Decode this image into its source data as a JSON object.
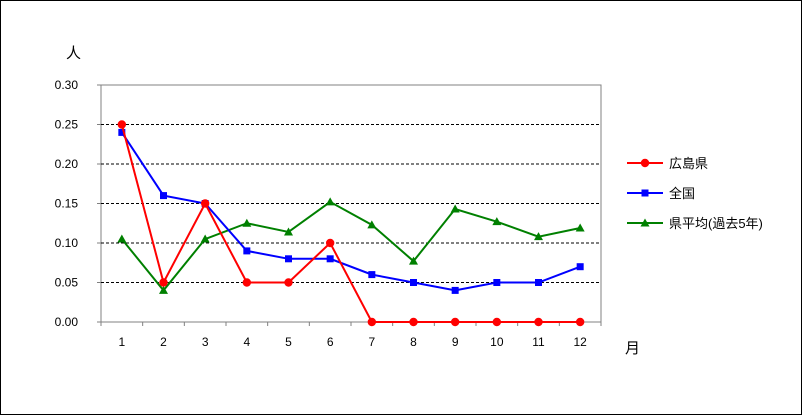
{
  "chart_data": {
    "type": "line",
    "ylabel": "人",
    "xlabel": "月",
    "categories": [
      "1",
      "2",
      "3",
      "4",
      "5",
      "6",
      "7",
      "8",
      "9",
      "10",
      "11",
      "12"
    ],
    "ylim": [
      0,
      0.3
    ],
    "yticks": [
      "0.00",
      "0.05",
      "0.10",
      "0.15",
      "0.20",
      "0.25",
      "0.30"
    ],
    "grid": "horizontal-dashed",
    "legend_position": "right",
    "series": [
      {
        "name": "広島県",
        "color": "#ff0000",
        "marker": "circle",
        "values": [
          0.25,
          0.05,
          0.15,
          0.05,
          0.05,
          0.1,
          0.0,
          0.0,
          0.0,
          0.0,
          0.0,
          0.0
        ]
      },
      {
        "name": "全国",
        "color": "#0000ff",
        "marker": "square",
        "values": [
          0.24,
          0.16,
          0.15,
          0.09,
          0.08,
          0.08,
          0.06,
          0.05,
          0.04,
          0.05,
          0.05,
          0.07
        ]
      },
      {
        "name": "県平均(過去5年)",
        "color": "#008000",
        "marker": "triangle",
        "values": [
          0.105,
          0.04,
          0.105,
          0.125,
          0.114,
          0.152,
          0.123,
          0.077,
          0.143,
          0.127,
          0.108,
          0.119
        ]
      }
    ]
  }
}
